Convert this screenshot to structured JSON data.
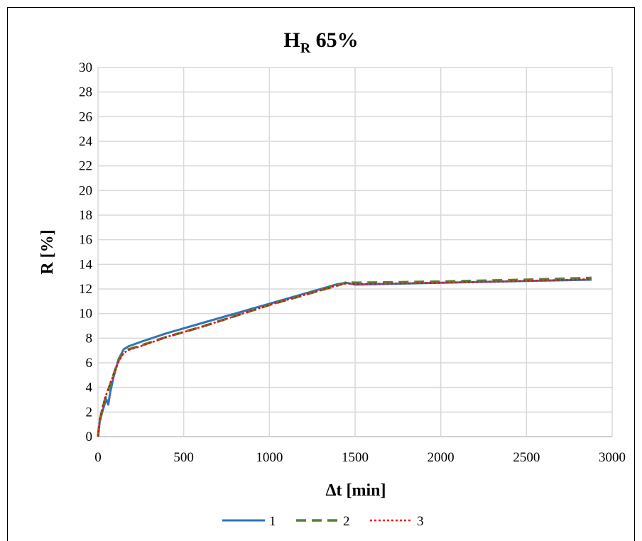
{
  "chart_data": {
    "type": "line",
    "title": {
      "main": "H",
      "sub": "R",
      "rest": " 65%"
    },
    "xlabel": "Δt [min]",
    "ylabel": "R [%]",
    "xlim": [
      0,
      3000
    ],
    "ylim": [
      0,
      30
    ],
    "xticks": [
      0,
      500,
      1000,
      1500,
      2000,
      2500,
      3000
    ],
    "yticks": [
      0,
      2,
      4,
      6,
      8,
      10,
      12,
      14,
      16,
      18,
      20,
      22,
      24,
      26,
      28,
      30
    ],
    "grid": true,
    "legend_position": "bottom",
    "series": [
      {
        "name": "1",
        "color": "#2E75B6",
        "style": "solid",
        "x": [
          0,
          10,
          25,
          40,
          50,
          55,
          60,
          70,
          90,
          120,
          150,
          180,
          250,
          400,
          600,
          800,
          1000,
          1200,
          1400,
          1450,
          1500,
          2000,
          2500,
          2880
        ],
        "y": [
          0,
          1.2,
          2.0,
          2.7,
          3.0,
          2.8,
          2.6,
          3.5,
          4.8,
          6.3,
          7.1,
          7.35,
          7.7,
          8.4,
          9.2,
          10.0,
          10.8,
          11.6,
          12.4,
          12.5,
          12.35,
          12.5,
          12.65,
          12.75
        ]
      },
      {
        "name": "2",
        "color": "#548235",
        "style": "dashed",
        "x": [
          0,
          10,
          25,
          40,
          60,
          90,
          120,
          150,
          180,
          250,
          400,
          600,
          800,
          1000,
          1200,
          1400,
          1450,
          1500,
          2000,
          2500,
          2880
        ],
        "y": [
          0,
          1.3,
          2.2,
          3.0,
          3.8,
          5.0,
          6.2,
          6.9,
          7.1,
          7.4,
          8.1,
          8.9,
          9.8,
          10.7,
          11.5,
          12.3,
          12.55,
          12.5,
          12.6,
          12.75,
          12.9
        ]
      },
      {
        "name": "3",
        "color": "#FF0000",
        "style": "dotted",
        "x": [
          0,
          10,
          25,
          40,
          60,
          90,
          120,
          150,
          180,
          250,
          400,
          600,
          800,
          1000,
          1200,
          1400,
          1450,
          1500,
          2000,
          2500,
          2880
        ],
        "y": [
          0,
          1.4,
          2.3,
          3.1,
          3.9,
          5.0,
          6.1,
          6.8,
          7.05,
          7.35,
          8.1,
          8.9,
          9.8,
          10.7,
          11.5,
          12.3,
          12.45,
          12.4,
          12.5,
          12.65,
          12.8
        ]
      }
    ]
  }
}
